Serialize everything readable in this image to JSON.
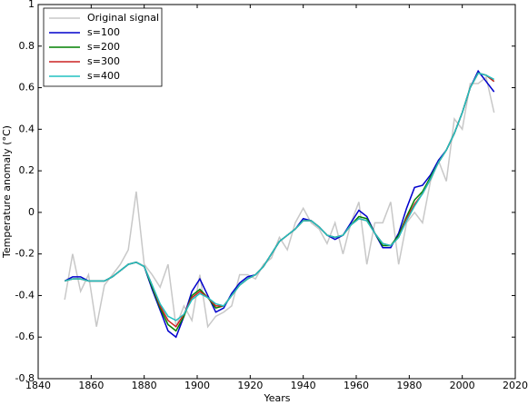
{
  "chart_data": {
    "type": "line",
    "x_label": "Years",
    "y_label": "Temperature anomaly (°C)",
    "xlim": [
      1840,
      2020
    ],
    "ylim": [
      -0.8,
      1
    ],
    "xticks": [
      1840,
      1860,
      1880,
      1900,
      1920,
      1940,
      1960,
      1980,
      2000,
      2020
    ],
    "yticks": [
      -0.8,
      -0.6,
      -0.4,
      -0.2,
      0,
      0.2,
      0.4,
      0.6,
      0.8,
      1
    ],
    "legend": "upper left",
    "x": [
      1850,
      1853,
      1856,
      1859,
      1862,
      1865,
      1868,
      1871,
      1874,
      1877,
      1880,
      1883,
      1886,
      1889,
      1892,
      1895,
      1898,
      1901,
      1904,
      1907,
      1910,
      1913,
      1916,
      1919,
      1922,
      1925,
      1928,
      1931,
      1934,
      1937,
      1940,
      1943,
      1946,
      1949,
      1952,
      1955,
      1958,
      1961,
      1964,
      1967,
      1970,
      1973,
      1976,
      1979,
      1982,
      1985,
      1988,
      1991,
      1994,
      1997,
      2000,
      2003,
      2006,
      2009,
      2012
    ],
    "series": [
      {
        "name": "Original signal",
        "color": "#c8c8c8",
        "width": 1.5,
        "values": [
          -0.42,
          -0.2,
          -0.38,
          -0.3,
          -0.55,
          -0.35,
          -0.3,
          -0.25,
          -0.18,
          0.1,
          -0.25,
          -0.3,
          -0.36,
          -0.25,
          -0.55,
          -0.45,
          -0.52,
          -0.3,
          -0.55,
          -0.5,
          -0.48,
          -0.45,
          -0.3,
          -0.3,
          -0.32,
          -0.25,
          -0.22,
          -0.12,
          -0.18,
          -0.05,
          0.02,
          -0.05,
          -0.08,
          -0.15,
          -0.05,
          -0.2,
          -0.05,
          0.05,
          -0.25,
          -0.05,
          -0.05,
          0.05,
          -0.25,
          -0.05,
          0.0,
          -0.05,
          0.15,
          0.25,
          0.15,
          0.45,
          0.4,
          0.62,
          0.62,
          0.65,
          0.48
        ]
      },
      {
        "name": "s=100",
        "color": "#0000cc",
        "width": 1.5,
        "values": [
          -0.33,
          -0.31,
          -0.31,
          -0.33,
          -0.33,
          -0.33,
          -0.31,
          -0.28,
          -0.25,
          -0.24,
          -0.26,
          -0.37,
          -0.47,
          -0.57,
          -0.6,
          -0.5,
          -0.38,
          -0.32,
          -0.4,
          -0.48,
          -0.46,
          -0.39,
          -0.34,
          -0.31,
          -0.3,
          -0.26,
          -0.2,
          -0.14,
          -0.11,
          -0.08,
          -0.03,
          -0.04,
          -0.07,
          -0.11,
          -0.13,
          -0.11,
          -0.05,
          0.01,
          -0.02,
          -0.1,
          -0.17,
          -0.17,
          -0.1,
          0.02,
          0.12,
          0.13,
          0.18,
          0.25,
          0.3,
          0.38,
          0.48,
          0.6,
          0.68,
          0.63,
          0.58
        ]
      },
      {
        "name": "s=200",
        "color": "#008000",
        "width": 1.5,
        "values": [
          -0.33,
          -0.32,
          -0.32,
          -0.33,
          -0.33,
          -0.33,
          -0.31,
          -0.28,
          -0.25,
          -0.24,
          -0.26,
          -0.36,
          -0.46,
          -0.54,
          -0.57,
          -0.5,
          -0.4,
          -0.37,
          -0.41,
          -0.46,
          -0.45,
          -0.4,
          -0.35,
          -0.32,
          -0.3,
          -0.26,
          -0.2,
          -0.14,
          -0.11,
          -0.08,
          -0.04,
          -0.04,
          -0.07,
          -0.11,
          -0.12,
          -0.11,
          -0.06,
          -0.02,
          -0.03,
          -0.1,
          -0.16,
          -0.16,
          -0.11,
          -0.02,
          0.06,
          0.1,
          0.17,
          0.24,
          0.3,
          0.38,
          0.48,
          0.6,
          0.67,
          0.66,
          0.63
        ]
      },
      {
        "name": "s=300",
        "color": "#cc2222",
        "width": 1.5,
        "values": [
          -0.33,
          -0.32,
          -0.32,
          -0.33,
          -0.33,
          -0.33,
          -0.31,
          -0.28,
          -0.25,
          -0.24,
          -0.26,
          -0.35,
          -0.45,
          -0.52,
          -0.55,
          -0.49,
          -0.41,
          -0.38,
          -0.41,
          -0.45,
          -0.45,
          -0.4,
          -0.35,
          -0.32,
          -0.3,
          -0.26,
          -0.2,
          -0.14,
          -0.11,
          -0.08,
          -0.04,
          -0.04,
          -0.07,
          -0.11,
          -0.12,
          -0.11,
          -0.06,
          -0.03,
          -0.04,
          -0.1,
          -0.15,
          -0.16,
          -0.12,
          -0.03,
          0.04,
          0.09,
          0.16,
          0.24,
          0.3,
          0.38,
          0.48,
          0.6,
          0.67,
          0.66,
          0.63
        ]
      },
      {
        "name": "s=400",
        "color": "#20c0c0",
        "width": 1.5,
        "values": [
          -0.33,
          -0.32,
          -0.32,
          -0.33,
          -0.33,
          -0.33,
          -0.31,
          -0.28,
          -0.25,
          -0.24,
          -0.26,
          -0.35,
          -0.44,
          -0.5,
          -0.52,
          -0.49,
          -0.42,
          -0.39,
          -0.41,
          -0.44,
          -0.45,
          -0.4,
          -0.35,
          -0.32,
          -0.3,
          -0.26,
          -0.2,
          -0.14,
          -0.11,
          -0.08,
          -0.04,
          -0.04,
          -0.07,
          -0.11,
          -0.12,
          -0.11,
          -0.06,
          -0.03,
          -0.04,
          -0.1,
          -0.15,
          -0.16,
          -0.12,
          -0.04,
          0.03,
          0.09,
          0.16,
          0.24,
          0.3,
          0.38,
          0.48,
          0.6,
          0.67,
          0.66,
          0.64
        ]
      }
    ]
  }
}
